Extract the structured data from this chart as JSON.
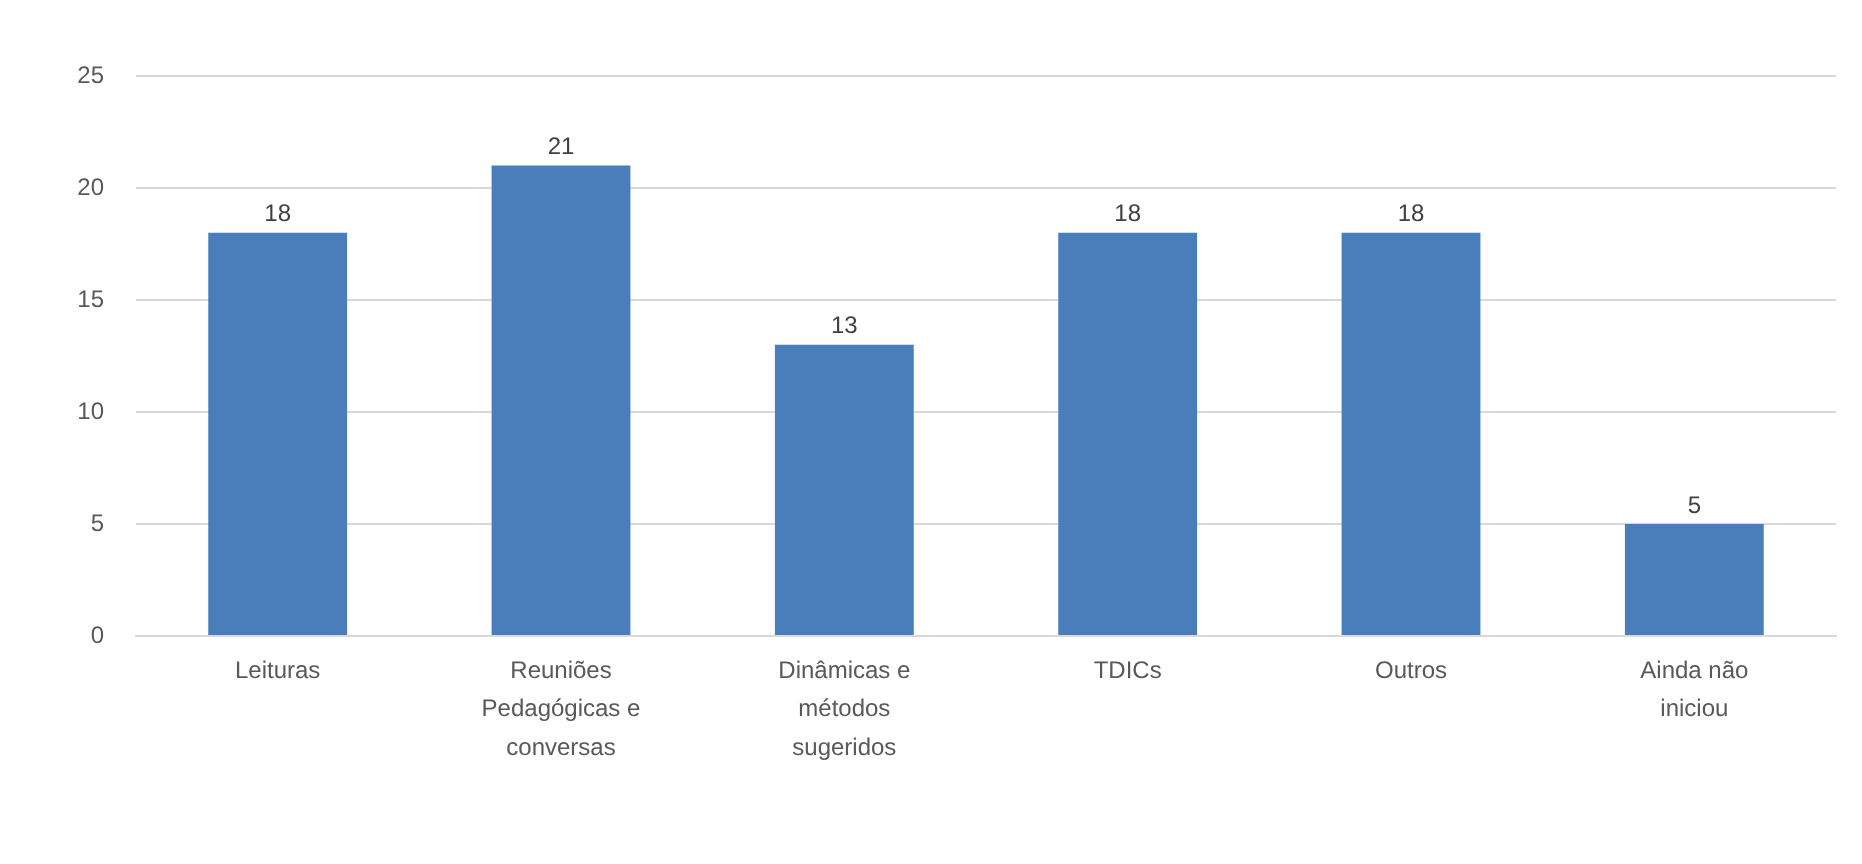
{
  "chart_data": {
    "type": "bar",
    "categories": [
      "Leituras",
      "Reuniões Pedagógicas e conversas",
      "Dinâmicas e métodos sugeridos",
      "TDICs",
      "Outros",
      "Ainda não iniciou"
    ],
    "values": [
      18,
      21,
      13,
      18,
      18,
      5
    ],
    "color": "#4a7ebb",
    "ylim": [
      0,
      25
    ],
    "yticks": [
      0,
      5,
      10,
      15,
      20,
      25
    ],
    "grid": "y",
    "data_labels": true
  }
}
